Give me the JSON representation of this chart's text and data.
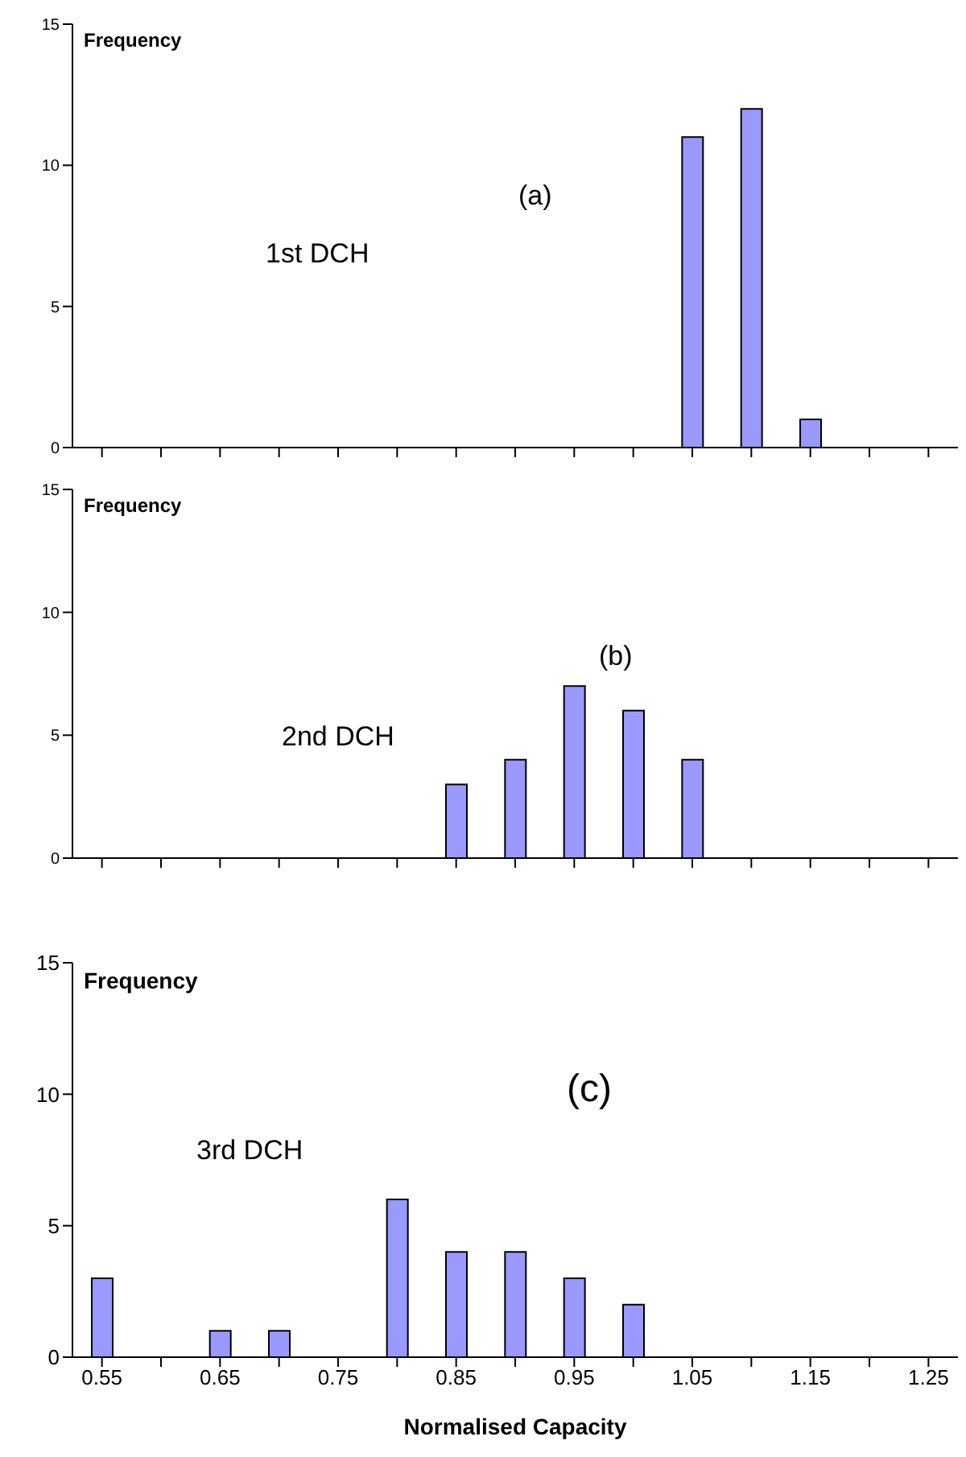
{
  "chart_data": [
    {
      "type": "bar",
      "ylabel": "Frequency",
      "annotations": [
        "(a)",
        "1st DCH"
      ],
      "categories": [
        "0.55",
        null,
        "0.65",
        null,
        "0.75",
        null,
        "0.85",
        null,
        "0.95",
        null,
        "1.05",
        null,
        "1.15",
        null,
        "1.25"
      ],
      "values": [
        0,
        0,
        0,
        0,
        0,
        0,
        0,
        0,
        0,
        0,
        11,
        12,
        1,
        0,
        0
      ],
      "color": "#9999ff",
      "ylim": [
        0,
        15
      ],
      "yticks": [
        0,
        5,
        10,
        15
      ],
      "tick_labels": "y"
    },
    {
      "type": "bar",
      "ylabel": "Frequency",
      "annotations": [
        "(b)",
        "2nd DCH"
      ],
      "categories": [
        "0.55",
        null,
        "0.65",
        null,
        "0.75",
        null,
        "0.85",
        null,
        "0.95",
        null,
        "1.05",
        null,
        "1.15",
        null,
        "1.25"
      ],
      "values": [
        0,
        0,
        0,
        0,
        0,
        0,
        3,
        4,
        7,
        6,
        4,
        0,
        0,
        0,
        0
      ],
      "color": "#9999ff",
      "ylim": [
        0,
        15
      ],
      "yticks": [
        0,
        5,
        10,
        15
      ],
      "tick_labels": "y"
    },
    {
      "type": "bar",
      "ylabel": "Frequency",
      "xlabel": "Normalised Capacity",
      "annotations": [
        "(c)",
        "3rd DCH"
      ],
      "categories": [
        "0.55",
        null,
        "0.65",
        null,
        "0.75",
        null,
        "0.85",
        null,
        "0.95",
        null,
        "1.05",
        null,
        "1.15",
        null,
        "1.25"
      ],
      "values": [
        3,
        0,
        1,
        1,
        0,
        6,
        4,
        4,
        3,
        2,
        0,
        0,
        0,
        0,
        0
      ],
      "color": "#9999ff",
      "ylim": [
        0,
        15
      ],
      "yticks": [
        0,
        5,
        10,
        15
      ]
    }
  ]
}
